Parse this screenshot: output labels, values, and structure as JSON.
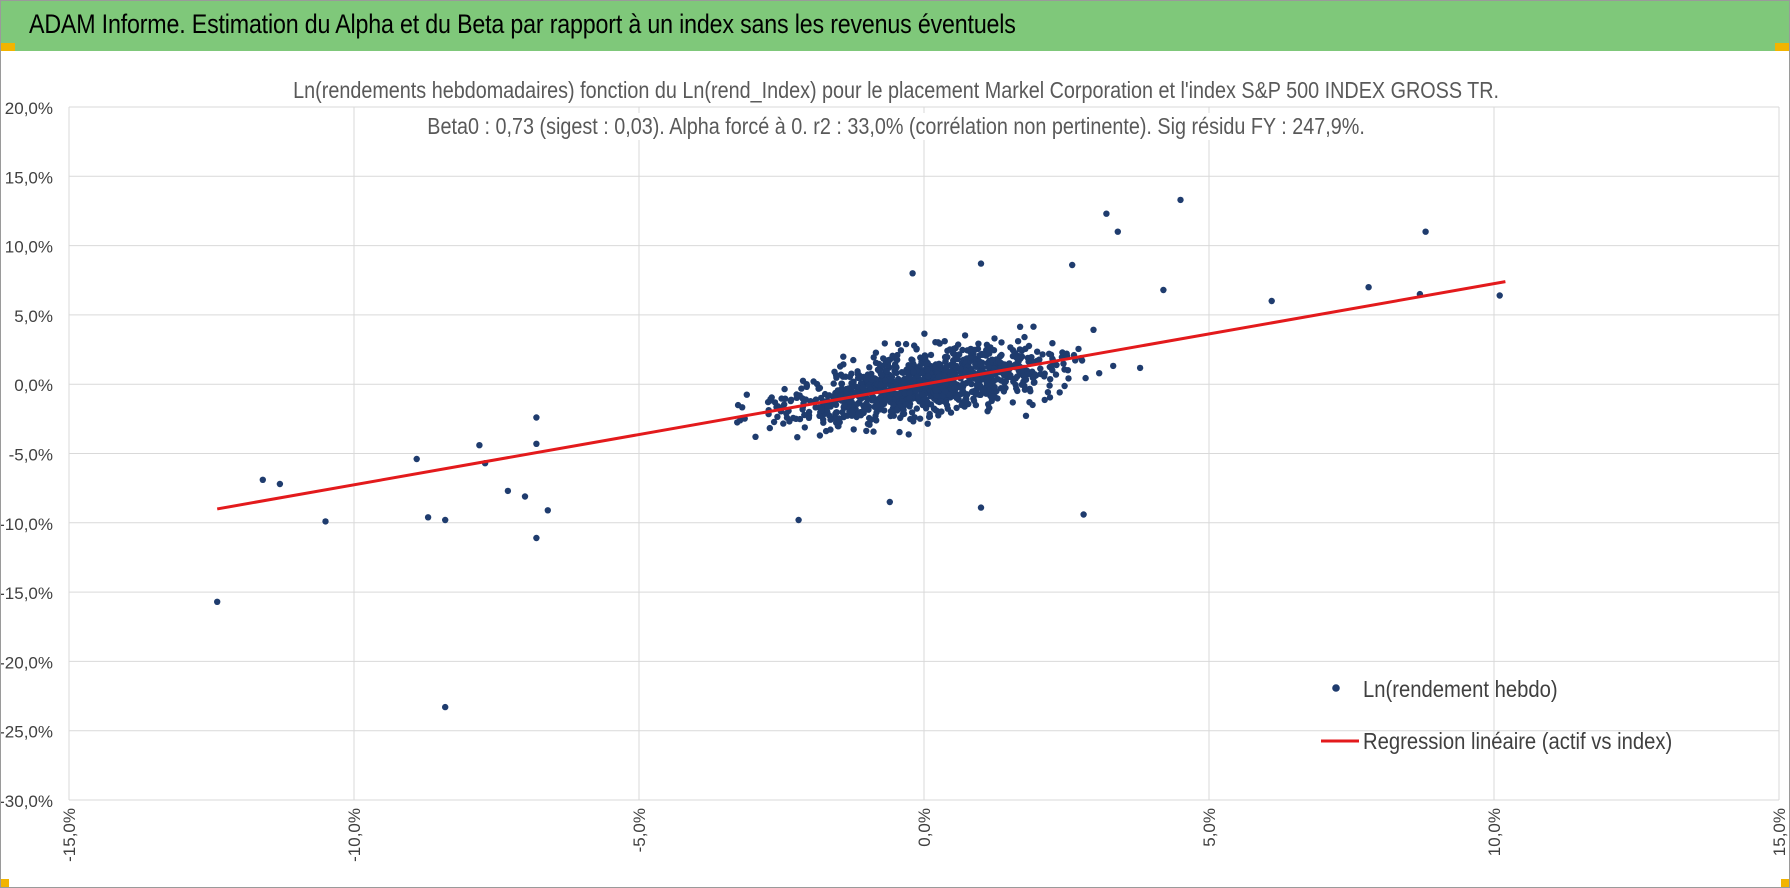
{
  "header": {
    "title": "ADAM Informe. Estimation du Alpha et du Beta par rapport à un index sans les revenus éventuels",
    "bg_color": "#7fc87a",
    "corner_color": "#f2b400"
  },
  "chart_data": {
    "type": "scatter",
    "title_line1": "Ln(rendements hebdomadaires) fonction du Ln(rend_Index) pour le placement Markel Corporation et l'index S&P 500 INDEX GROSS TR.",
    "title_line2": "Beta0 : 0,73 (sigest : 0,03).  Alpha forcé à 0. r2 : 33,0% (corrélation non pertinente). Sig résidu FY : 247,9%.",
    "xlabel": "",
    "ylabel": "",
    "xlim": [
      -0.15,
      0.15
    ],
    "ylim": [
      -0.3,
      0.2
    ],
    "x_ticks": [
      -0.15,
      -0.1,
      -0.05,
      0.0,
      0.05,
      0.1,
      0.15
    ],
    "x_tick_labels": [
      "-15,0%",
      "-10,0%",
      "-5,0%",
      "0,0%",
      "5,0%",
      "10,0%",
      "15,0%"
    ],
    "y_ticks": [
      0.2,
      0.15,
      0.1,
      0.05,
      0.0,
      -0.05,
      -0.1,
      -0.15,
      -0.2,
      -0.25,
      -0.3
    ],
    "y_tick_labels": [
      "20,0%",
      "15,0%",
      "10,0%",
      "5,0%",
      "0,0%",
      "-5,0%",
      "-10,0%",
      "-15,0%",
      "-20,0%",
      "-25,0%",
      "-30,0%"
    ],
    "grid": true,
    "legend_position": "bottom-right",
    "series": [
      {
        "name": "Ln(rendement hebdo)",
        "kind": "scatter",
        "color": "#1f3c6e",
        "outliers": [
          [
            -0.124,
            -0.157
          ],
          [
            -0.116,
            -0.069
          ],
          [
            -0.113,
            -0.072
          ],
          [
            -0.105,
            -0.099
          ],
          [
            -0.089,
            -0.054
          ],
          [
            -0.087,
            -0.096
          ],
          [
            -0.084,
            -0.098
          ],
          [
            -0.084,
            -0.233
          ],
          [
            -0.078,
            -0.044
          ],
          [
            -0.077,
            -0.057
          ],
          [
            -0.073,
            -0.077
          ],
          [
            -0.07,
            -0.081
          ],
          [
            -0.068,
            -0.024
          ],
          [
            -0.068,
            -0.043
          ],
          [
            -0.068,
            -0.111
          ],
          [
            -0.066,
            -0.091
          ],
          [
            -0.022,
            -0.098
          ],
          [
            -0.006,
            -0.085
          ],
          [
            0.01,
            -0.089
          ],
          [
            0.028,
            -0.094
          ],
          [
            0.032,
            0.123
          ],
          [
            0.034,
            0.11
          ],
          [
            0.045,
            0.133
          ],
          [
            0.061,
            0.06
          ],
          [
            0.078,
            0.07
          ],
          [
            0.087,
            0.065
          ],
          [
            0.088,
            0.11
          ],
          [
            0.101,
            0.064
          ],
          [
            -0.002,
            0.08
          ],
          [
            0.01,
            0.087
          ],
          [
            0.026,
            0.086
          ],
          [
            0.042,
            0.068
          ]
        ],
        "bulk_points_count": 1100
      },
      {
        "name": "Regression linéaire (actif vs index)",
        "kind": "line",
        "color": "#e31a1c",
        "points": [
          [
            -0.124,
            -0.09
          ],
          [
            0.102,
            0.074
          ]
        ]
      }
    ]
  }
}
